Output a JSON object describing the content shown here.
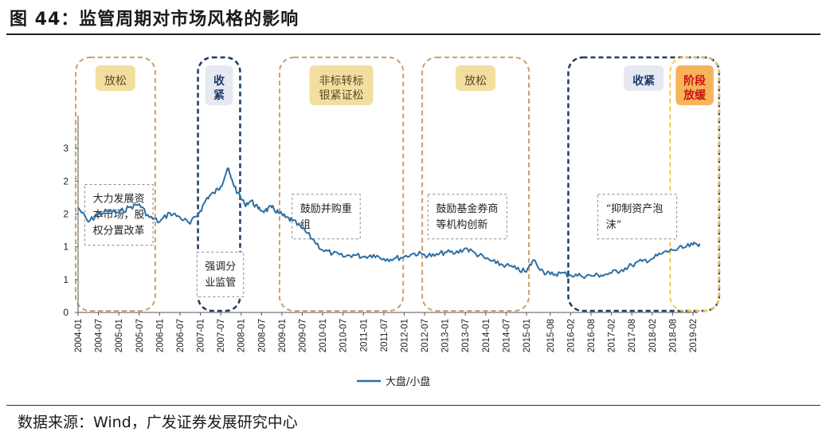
{
  "figure": {
    "title": "图 44：监管周期对市场风格的影响",
    "source": "数据来源：Wind，广发证券发展研究中心"
  },
  "colors": {
    "line": "#2e6fa3",
    "tan_border": "#c9a06a",
    "tan_fill": "#f2dfa0",
    "navy_border": "#1f3a68",
    "navy_fill": "#e6e9f2",
    "yellow_border": "#f5c84a",
    "orange_fill": "#f6b45a"
  },
  "periods": [
    {
      "label": [
        "放松"
      ],
      "style": "tan",
      "start": "2004-01",
      "end": "2005-11"
    },
    {
      "label": [
        "收",
        "紧"
      ],
      "style": "navy",
      "start": "2007-01",
      "end": "2007-12"
    },
    {
      "label": [
        "非标转标",
        "银紧证松"
      ],
      "style": "tan",
      "start": "2009-01",
      "end": "2011-12"
    },
    {
      "label": [
        "放松"
      ],
      "style": "tan",
      "start": "2012-07",
      "end": "2015-01"
    },
    {
      "label": [
        "收紧"
      ],
      "style": "navy",
      "start": "2016-02",
      "end": "2019-09"
    },
    {
      "label": [
        "阶段",
        "放缓"
      ],
      "style": "red",
      "start": "2018-08",
      "end": "2019-09"
    }
  ],
  "annotations": [
    {
      "lines": [
        "大力发展资",
        "本市场，股",
        "权分置改革"
      ],
      "x": "2004-03",
      "y": 1.95
    },
    {
      "lines": [
        "强调分",
        "业监管"
      ],
      "x": "2006-12",
      "y": 0.92
    },
    {
      "lines": [
        "鼓励并购重",
        "组"
      ],
      "x": "2009-04",
      "y": 1.8
    },
    {
      "lines": [
        "鼓励基金券商",
        "等机构创新"
      ],
      "x": "2012-08",
      "y": 1.8
    },
    {
      "lines": [
        "“抑制资产泡",
        "沫”"
      ],
      "x": "2016-10",
      "y": 1.8
    }
  ],
  "chart_data": {
    "type": "line",
    "title": "",
    "xlabel": "",
    "ylabel": "",
    "ylim": [
      0,
      3
    ],
    "y_tick_labels": [
      "0",
      "1",
      "1",
      "2",
      "2",
      "3"
    ],
    "x_tick_labels": [
      "2004-01",
      "2004-07",
      "2005-01",
      "2005-07",
      "2006-01",
      "2006-07",
      "2007-01",
      "2007-07",
      "2008-01",
      "2008-07",
      "2009-01",
      "2009-07",
      "2010-01",
      "2010-07",
      "2011-01",
      "2011-07",
      "2012-01",
      "2012-07",
      "2013-01",
      "2013-07",
      "2014-01",
      "2014-07",
      "2015-01",
      "2015-08",
      "2016-02",
      "2016-08",
      "2017-02",
      "2017-08",
      "2018-02",
      "2018-08",
      "2019-02"
    ],
    "legend": {
      "position": "bottom-center"
    },
    "series": [
      {
        "name": "大盘/小盘",
        "x": [
          "2004-01",
          "2004-04",
          "2004-07",
          "2004-10",
          "2005-01",
          "2005-04",
          "2005-07",
          "2005-10",
          "2006-01",
          "2006-04",
          "2006-07",
          "2006-10",
          "2007-01",
          "2007-03",
          "2007-05",
          "2007-07",
          "2007-09",
          "2007-10",
          "2007-12",
          "2008-02",
          "2008-04",
          "2008-06",
          "2008-08",
          "2008-10",
          "2008-12",
          "2009-02",
          "2009-04",
          "2009-07",
          "2009-10",
          "2010-01",
          "2010-04",
          "2010-07",
          "2010-10",
          "2011-01",
          "2011-04",
          "2011-07",
          "2011-10",
          "2012-01",
          "2012-04",
          "2012-07",
          "2012-10",
          "2013-01",
          "2013-04",
          "2013-07",
          "2013-10",
          "2014-01",
          "2014-04",
          "2014-07",
          "2014-10",
          "2015-01",
          "2015-03",
          "2015-06",
          "2015-08",
          "2015-11",
          "2016-02",
          "2016-05",
          "2016-08",
          "2016-11",
          "2017-02",
          "2017-05",
          "2017-08",
          "2017-11",
          "2018-02",
          "2018-05",
          "2018-08",
          "2018-11",
          "2019-02",
          "2019-04"
        ],
        "values": [
          1.6,
          1.38,
          1.5,
          1.55,
          1.52,
          1.6,
          1.65,
          1.45,
          1.38,
          1.52,
          1.45,
          1.35,
          1.55,
          1.75,
          1.82,
          1.92,
          2.2,
          2.05,
          1.82,
          1.65,
          1.7,
          1.58,
          1.55,
          1.6,
          1.52,
          1.45,
          1.4,
          1.28,
          1.12,
          0.95,
          0.9,
          0.85,
          0.88,
          0.85,
          0.88,
          0.82,
          0.82,
          0.85,
          0.9,
          0.88,
          0.86,
          0.92,
          0.9,
          0.98,
          0.9,
          0.82,
          0.75,
          0.72,
          0.66,
          0.62,
          0.8,
          0.62,
          0.58,
          0.6,
          0.57,
          0.56,
          0.56,
          0.57,
          0.6,
          0.65,
          0.72,
          0.78,
          0.82,
          0.9,
          0.95,
          0.98,
          1.03,
          1.05
        ]
      }
    ]
  }
}
